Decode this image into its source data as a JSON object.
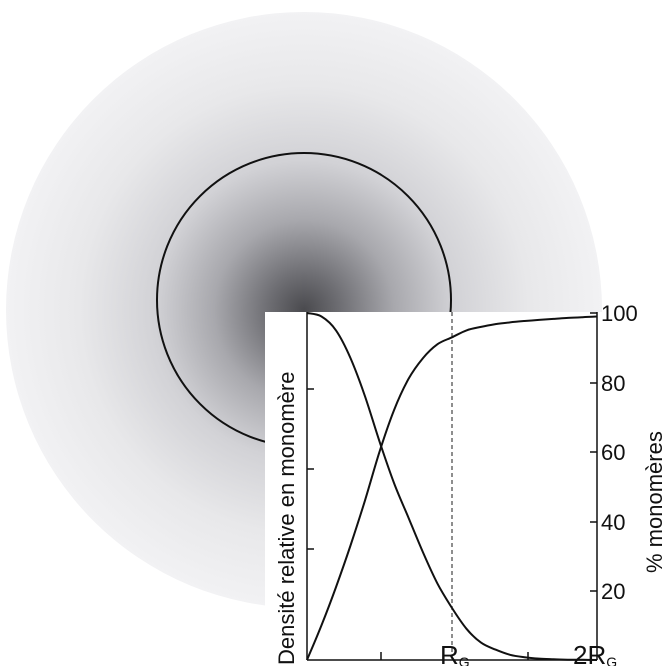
{
  "figure": {
    "left_axis_label": "Densité relative en monomère",
    "right_axis_label": "% monomères",
    "right_ticks": [
      "20",
      "40",
      "60",
      "80",
      "100"
    ],
    "x_labels": {
      "rg": {
        "main": "R",
        "sub": "G"
      },
      "two_rg": {
        "main": "2R",
        "sub": "G"
      }
    },
    "colors": {
      "line": "#111111",
      "dashed": "#444444",
      "gradient_core": "#4a4a4e",
      "gradient_edge": "#f2f2f4"
    }
  },
  "chart_data": {
    "type": "line",
    "x_range": [
      0,
      2
    ],
    "ylim_left": [
      0,
      1
    ],
    "ylim_right": [
      0,
      100
    ],
    "reference_line_x": 1,
    "series": [
      {
        "axis": "left",
        "x": [
          0,
          0.1,
          0.2,
          0.3,
          0.4,
          0.5,
          0.6,
          0.7,
          0.8,
          0.9,
          1.0,
          1.1,
          1.2,
          1.3,
          1.4,
          1.5,
          1.6,
          1.7,
          1.8,
          1.9,
          2.0
        ],
        "values": [
          1.0,
          0.99,
          0.95,
          0.87,
          0.76,
          0.63,
          0.51,
          0.41,
          0.31,
          0.22,
          0.15,
          0.09,
          0.05,
          0.03,
          0.015,
          0.008,
          0.004,
          0.002,
          0.001,
          0.0005,
          0
        ]
      },
      {
        "axis": "right",
        "x": [
          0,
          0.1,
          0.2,
          0.3,
          0.4,
          0.5,
          0.6,
          0.7,
          0.8,
          0.9,
          1.0,
          1.1,
          1.2,
          1.3,
          1.4,
          1.5,
          1.6,
          1.7,
          1.8,
          1.9,
          2.0
        ],
        "values": [
          0,
          10,
          21,
          33,
          46,
          60,
          72,
          81,
          87,
          91,
          93,
          95,
          96,
          96.8,
          97.3,
          97.7,
          98,
          98.3,
          98.6,
          98.8,
          99
        ]
      }
    ]
  }
}
